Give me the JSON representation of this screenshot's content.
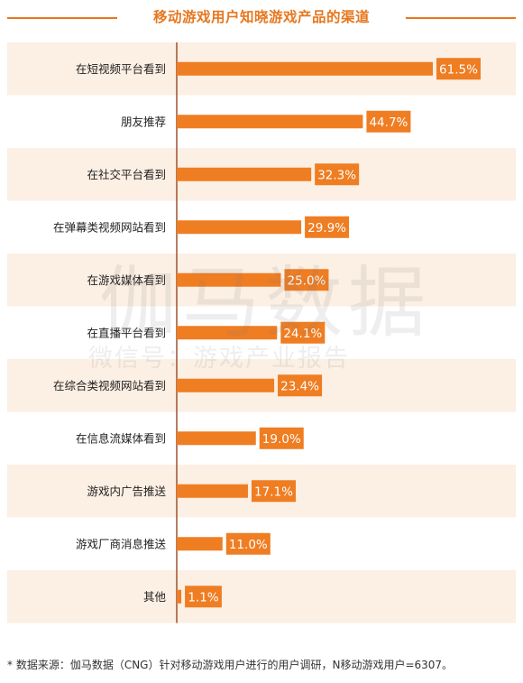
{
  "title": "移动游戏用户知晓游戏产品的渠道",
  "colors": {
    "accent": "#e6771f",
    "bar": "#ef7d22",
    "label_box": "#ef7d22",
    "band": "#fcefe3",
    "axis": "#a0522d"
  },
  "chart_data": {
    "type": "bar",
    "orientation": "horizontal",
    "categories": [
      "在短视频平台看到",
      "朋友推荐",
      "在社交平台看到",
      "在弹幕类视频网站看到",
      "在游戏媒体看到",
      "在直播平台看到",
      "在综合类视频网站看到",
      "在信息流媒体看到",
      "游戏内广告推送",
      "游戏厂商消息推送",
      "其他"
    ],
    "values": [
      61.5,
      44.7,
      32.3,
      29.9,
      25.0,
      24.1,
      23.4,
      19.0,
      17.1,
      11.0,
      1.1
    ],
    "value_labels": [
      "61.5%",
      "44.7%",
      "32.3%",
      "29.9%",
      "25.0%",
      "24.1%",
      "23.4%",
      "19.0%",
      "17.1%",
      "11.0%",
      "1.1%"
    ],
    "xlim": [
      0,
      61.5
    ],
    "alternating_bands": true
  },
  "watermark": {
    "main": "伽马数据",
    "sub": "微信号：游戏产业报告"
  },
  "footnote": "* 数据来源：伽马数据（CNG）针对移动游戏用户进行的用户调研，N移动游戏用户=6307。"
}
